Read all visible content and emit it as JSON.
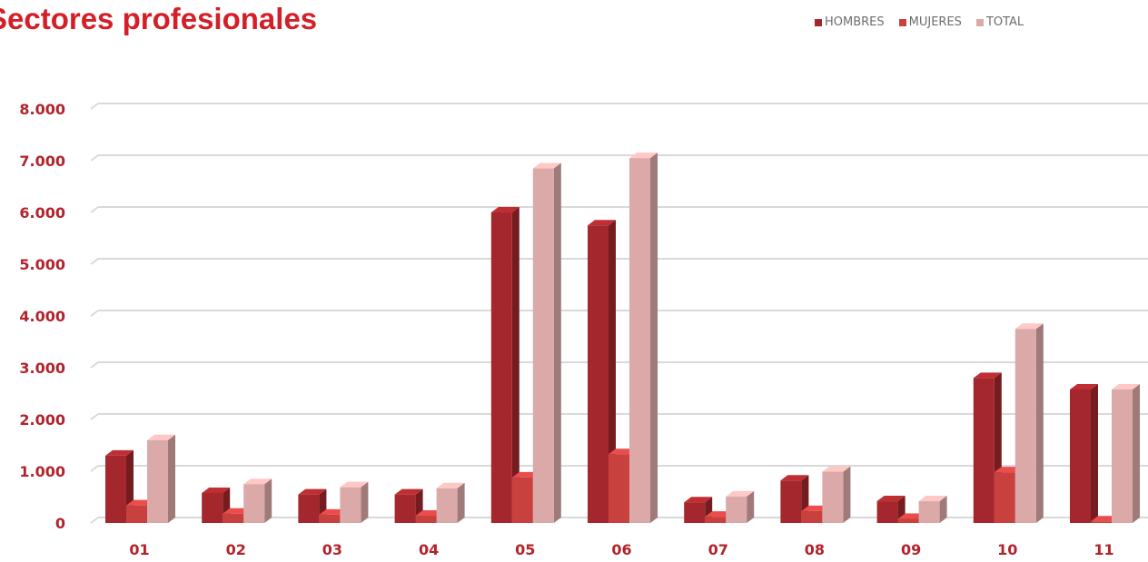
{
  "page": {
    "title": "Sectores profesionales"
  },
  "legend": [
    {
      "label": "HOMBRES",
      "color": "#a3272c"
    },
    {
      "label": "MUJERES",
      "color": "#c8413f"
    },
    {
      "label": "TOTAL",
      "color": "#dba9a8"
    }
  ],
  "chart_data": {
    "type": "bar",
    "categories": [
      "01",
      "02",
      "03",
      "04",
      "05",
      "06",
      "07",
      "08",
      "09",
      "10",
      "11"
    ],
    "series": [
      {
        "name": "HOMBRES",
        "color": "#a3272c",
        "values": [
          1300,
          580,
          550,
          550,
          6000,
          5750,
          400,
          820,
          420,
          2800,
          2580
        ]
      },
      {
        "name": "MUJERES",
        "color": "#c8413f",
        "values": [
          340,
          180,
          160,
          140,
          880,
          1330,
          120,
          230,
          80,
          980,
          30
        ]
      },
      {
        "name": "TOTAL",
        "color": "#dba9a8",
        "values": [
          1600,
          750,
          690,
          670,
          6850,
          7050,
          510,
          990,
          420,
          3750,
          2580
        ]
      }
    ],
    "yticks": [
      "0",
      "1.000",
      "2.000",
      "3.000",
      "4.000",
      "5.000",
      "6.000",
      "7.000",
      "8.000"
    ],
    "ylim": [
      0,
      8000
    ],
    "grid": true,
    "legend_position": "top-right",
    "style": "3d-bar"
  }
}
